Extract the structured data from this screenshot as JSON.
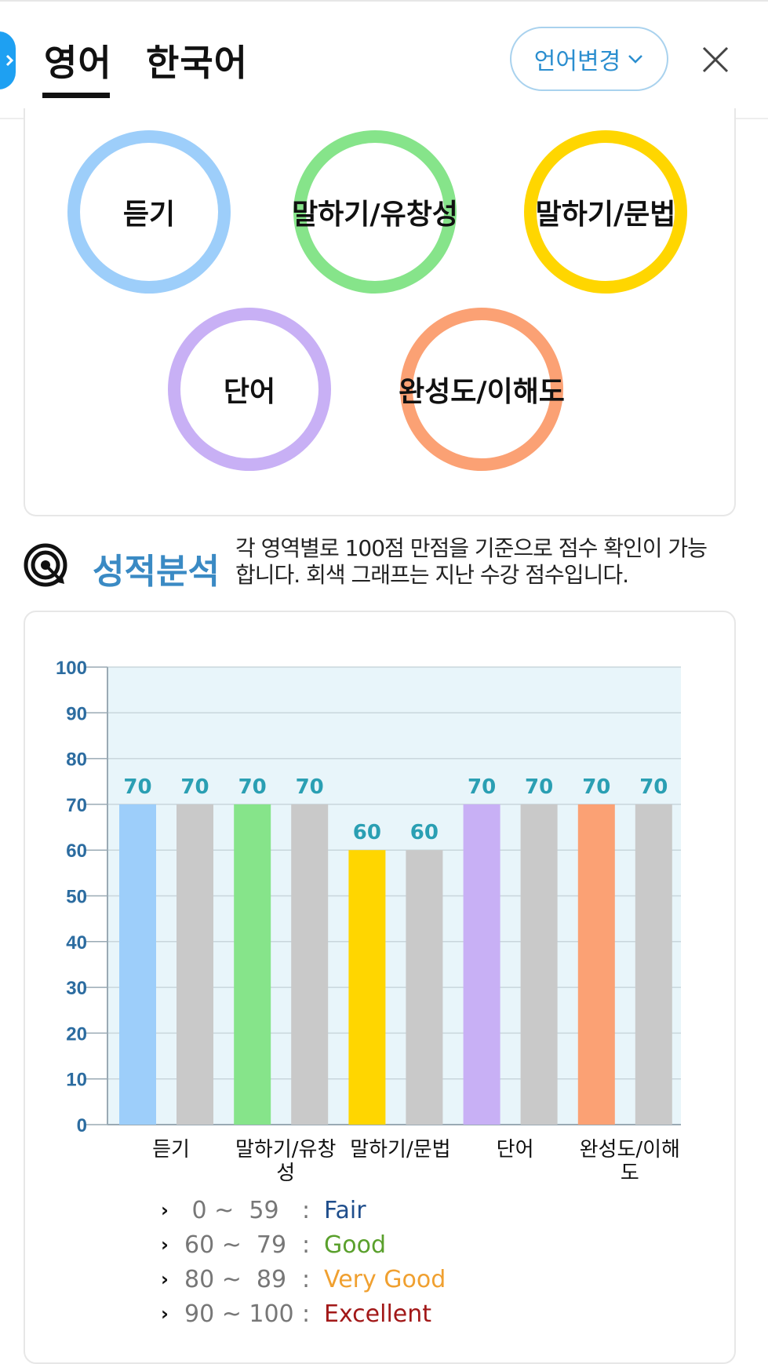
{
  "header": {
    "tab_active": "영어",
    "tab_other": "한국어",
    "language_button": "언어변경"
  },
  "skill_rings": [
    {
      "label": "듣기",
      "color": "#9dcefa"
    },
    {
      "label": "말하기/유창성",
      "color": "#86e48a"
    },
    {
      "label": "말하기/문법",
      "color": "#ffd600"
    },
    {
      "label": "단어",
      "color": "#c8b0f5"
    },
    {
      "label": "완성도/이해도",
      "color": "#fba174"
    }
  ],
  "section": {
    "title": "성적분석",
    "description_line1": "각 영역별로 100점 만점을 기준으로 점수 확인이 가능",
    "description_line2": "합니다. 회색 그래프는 지난 수강 점수입니다."
  },
  "chart_data": {
    "type": "bar",
    "categories": [
      "듣기",
      "말하기/유창성",
      "말하기/문법",
      "단어",
      "완성도/이해도"
    ],
    "category_labels": [
      [
        "듣기"
      ],
      [
        "말하기/유창",
        "성"
      ],
      [
        "말하기/문법"
      ],
      [
        "단어"
      ],
      [
        "완성도/이해",
        "도"
      ]
    ],
    "series": [
      {
        "values": [
          70,
          70,
          60,
          70,
          70
        ],
        "colors": [
          "#9dcefa",
          "#86e48a",
          "#ffd600",
          "#c8b0f5",
          "#fba174"
        ]
      },
      {
        "values": [
          70,
          70,
          60,
          70,
          70
        ],
        "colors": [
          "#c9c9c9",
          "#c9c9c9",
          "#c9c9c9",
          "#c9c9c9",
          "#c9c9c9"
        ]
      }
    ],
    "ylim": [
      0,
      100
    ],
    "yticks": [
      0,
      10,
      20,
      30,
      40,
      50,
      60,
      70,
      80,
      90,
      100
    ],
    "grid": true,
    "plot_background": "#e8f5fa",
    "value_label_color": "#2a9fb3",
    "axis_tick_color": "#2c6ca0"
  },
  "legend": [
    {
      "range": " 0 ~  59",
      "grade": "Fair",
      "color": "#1f4e8c"
    },
    {
      "range": "60 ~  79",
      "grade": "Good",
      "color": "#5aa02c"
    },
    {
      "range": "80 ~  89",
      "grade": "Very Good",
      "color": "#f0a030"
    },
    {
      "range": "90 ~ 100",
      "grade": "Excellent",
      "color": "#a21818"
    }
  ]
}
